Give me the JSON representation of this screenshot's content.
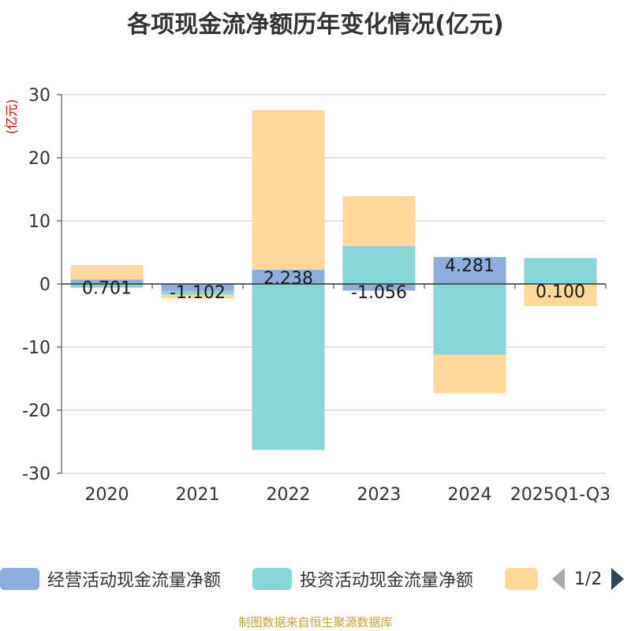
{
  "title": "各项现金流净额历年变化情况(亿元)",
  "source": "制图数据来自恒生聚源数据库",
  "legend_pager": "1/2",
  "colors": {
    "operating": "#8eaedd",
    "investing": "#88d5d8",
    "financing": "#fdd89a",
    "axis": "#333333",
    "grid": "#cccccc",
    "unit": "#dd0000"
  },
  "chart_data": {
    "type": "bar",
    "stacked": true,
    "title": "各项现金流净额历年变化情况(亿元)",
    "ylabel": "(亿元)",
    "ylim": [
      -30,
      30
    ],
    "yticks": [
      30,
      20,
      10,
      0,
      -10,
      -20,
      -30
    ],
    "categories": [
      "2020",
      "2021",
      "2022",
      "2023",
      "2024",
      "2025Q1-Q3"
    ],
    "series": [
      {
        "name": "经营活动现金流量净额",
        "values": [
          0.7,
          -1.102,
          2.238,
          -1.056,
          4.281,
          0.1
        ]
      },
      {
        "name": "投资活动现金流量净额",
        "values": [
          -0.6,
          -0.6,
          -26.3,
          6.0,
          -11.2,
          4.0
        ]
      },
      {
        "name": "",
        "values": [
          2.3,
          -0.6,
          25.3,
          7.9,
          -6.1,
          -3.5
        ]
      }
    ],
    "data_labels": [
      "0.701",
      "-1.102",
      "2.238",
      "-1.056",
      "4.281",
      "0.100"
    ],
    "legend_position": "bottom"
  }
}
